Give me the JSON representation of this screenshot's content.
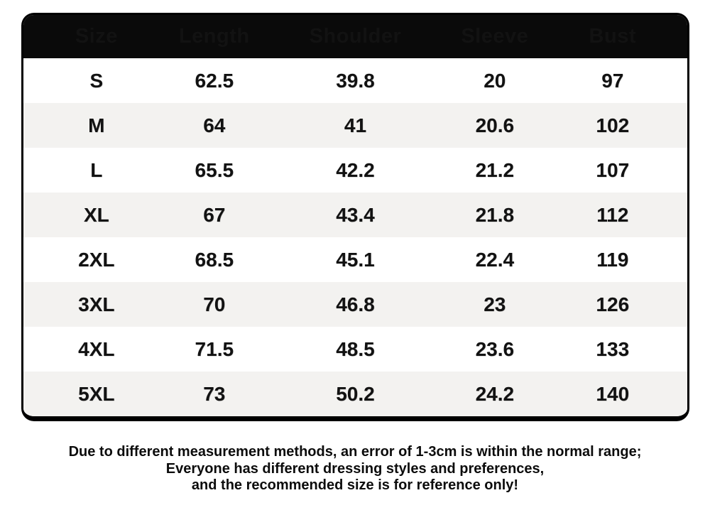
{
  "colors": {
    "page_bg": "#ffffff",
    "header_bg": "#0a0a0a",
    "header_text": "#ffffff",
    "row_bg": "#ffffff",
    "row_alt_bg": "#f3f2f0",
    "border": "#000000",
    "body_text": "#121212"
  },
  "chart_data": {
    "type": "table",
    "columns": [
      "Size",
      "Length",
      "Shoulder",
      "Sleeve",
      "Bust"
    ],
    "rows": [
      [
        "S",
        "62.5",
        "39.8",
        "20",
        "97"
      ],
      [
        "M",
        "64",
        "41",
        "20.6",
        "102"
      ],
      [
        "L",
        "65.5",
        "42.2",
        "21.2",
        "107"
      ],
      [
        "XL",
        "67",
        "43.4",
        "21.8",
        "112"
      ],
      [
        "2XL",
        "68.5",
        "45.1",
        "22.4",
        "119"
      ],
      [
        "3XL",
        "70",
        "46.8",
        "23",
        "126"
      ],
      [
        "4XL",
        "71.5",
        "48.5",
        "23.6",
        "133"
      ],
      [
        "5XL",
        "73",
        "50.2",
        "24.2",
        "140"
      ]
    ]
  },
  "footer": {
    "lines": [
      "Due to different measurement methods, an error of 1-3cm is within the normal range;",
      "Everyone has different dressing styles and preferences,",
      "and the recommended size is for reference only!"
    ]
  }
}
